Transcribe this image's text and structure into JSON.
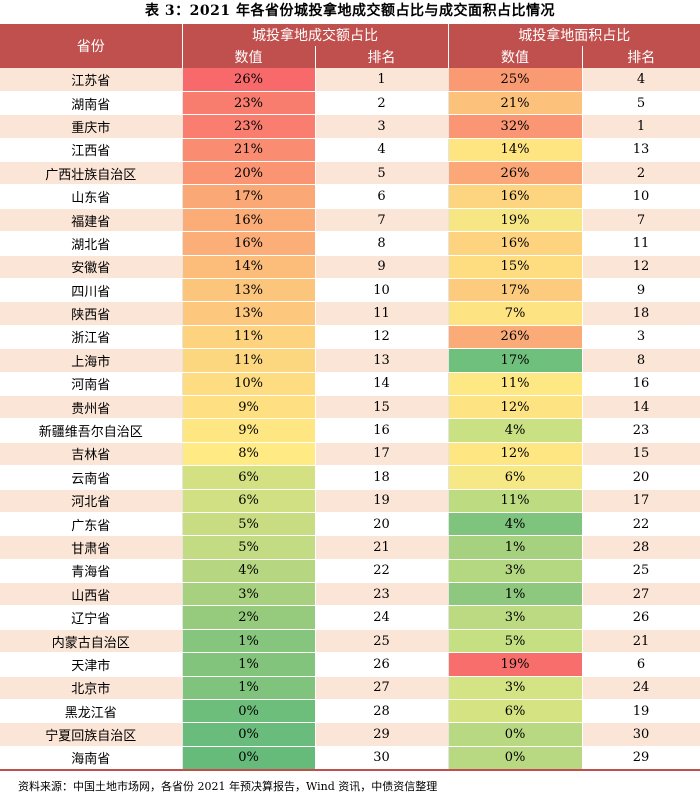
{
  "title": "表 3：2021 年各省份城投拿地成交额占比与成交面积占比情况",
  "header": {
    "province": "省份",
    "group_amount": "城投拿地成交额占比",
    "group_area": "城投拿地面积占比",
    "value": "数值",
    "rank": "排名"
  },
  "rows": [
    {
      "province": "江苏省",
      "amount": "26%",
      "amount_rank": "1",
      "area": "25%",
      "area_rank": "4",
      "amount_color": "#f8696b",
      "area_color": "#fa9a72"
    },
    {
      "province": "湖南省",
      "amount": "23%",
      "amount_rank": "2",
      "area": "21%",
      "area_rank": "5",
      "amount_color": "#f97d6e",
      "area_color": "#fcc17b"
    },
    {
      "province": "重庆市",
      "amount": "23%",
      "amount_rank": "3",
      "area": "32%",
      "area_rank": "1",
      "amount_color": "#f97e6f",
      "area_color": "#fa9674"
    },
    {
      "province": "江西省",
      "amount": "21%",
      "amount_rank": "4",
      "area": "14%",
      "area_rank": "13",
      "amount_color": "#fa8d71",
      "area_color": "#fee582"
    },
    {
      "province": "广西壮族自治区",
      "amount": "20%",
      "amount_rank": "5",
      "area": "26%",
      "area_rank": "2",
      "amount_color": "#fa9473",
      "area_color": "#fba777"
    },
    {
      "province": "山东省",
      "amount": "17%",
      "amount_rank": "6",
      "area": "16%",
      "area_rank": "10",
      "amount_color": "#fba877",
      "area_color": "#fdd47f"
    },
    {
      "province": "福建省",
      "amount": "16%",
      "amount_rank": "7",
      "area": "19%",
      "area_rank": "7",
      "amount_color": "#fbac77",
      "area_color": "#f6e784"
    },
    {
      "province": "湖北省",
      "amount": "16%",
      "amount_rank": "8",
      "area": "16%",
      "area_rank": "11",
      "amount_color": "#fbae78",
      "area_color": "#fdd37f"
    },
    {
      "province": "安徽省",
      "amount": "14%",
      "amount_rank": "9",
      "area": "15%",
      "area_rank": "12",
      "amount_color": "#fcbd7b",
      "area_color": "#fedd81"
    },
    {
      "province": "四川省",
      "amount": "13%",
      "amount_rank": "10",
      "area": "17%",
      "area_rank": "9",
      "amount_color": "#fcc57c",
      "area_color": "#fdcb7d"
    },
    {
      "province": "陕西省",
      "amount": "13%",
      "amount_rank": "11",
      "area": "7%",
      "area_rank": "18",
      "amount_color": "#fdc77d",
      "area_color": "#fee382"
    },
    {
      "province": "浙江省",
      "amount": "11%",
      "amount_rank": "12",
      "area": "26%",
      "area_rank": "3",
      "amount_color": "#fdd37f",
      "area_color": "#fbab78"
    },
    {
      "province": "上海市",
      "amount": "11%",
      "amount_rank": "13",
      "area": "17%",
      "area_rank": "8",
      "amount_color": "#fdd680",
      "area_color": "#6fc07c"
    },
    {
      "province": "河南省",
      "amount": "10%",
      "amount_rank": "14",
      "area": "11%",
      "area_rank": "16",
      "amount_color": "#fedc81",
      "area_color": "#fee883"
    },
    {
      "province": "贵州省",
      "amount": "9%",
      "amount_rank": "15",
      "area": "12%",
      "area_rank": "14",
      "amount_color": "#fee082",
      "area_color": "#fee382"
    },
    {
      "province": "新疆维吾尔自治区",
      "amount": "9%",
      "amount_rank": "16",
      "area": "4%",
      "area_rank": "23",
      "amount_color": "#fee683",
      "area_color": "#c9e183"
    },
    {
      "province": "吉林省",
      "amount": "8%",
      "amount_rank": "17",
      "area": "12%",
      "area_rank": "15",
      "amount_color": "#ffea84",
      "area_color": "#fee783"
    },
    {
      "province": "云南省",
      "amount": "6%",
      "amount_rank": "18",
      "area": "6%",
      "area_rank": "20",
      "amount_color": "#d3e183",
      "area_color": "#f6e884"
    },
    {
      "province": "河北省",
      "amount": "6%",
      "amount_rank": "19",
      "area": "11%",
      "area_rank": "17",
      "amount_color": "#d0e083",
      "area_color": "#bddc82"
    },
    {
      "province": "广东省",
      "amount": "5%",
      "amount_rank": "20",
      "area": "4%",
      "area_rank": "22",
      "amount_color": "#c8dd82",
      "area_color": "#7ec47d"
    },
    {
      "province": "甘肃省",
      "amount": "5%",
      "amount_rank": "21",
      "area": "1%",
      "area_rank": "28",
      "amount_color": "#c3db82",
      "area_color": "#a6d27f"
    },
    {
      "province": "青海省",
      "amount": "4%",
      "amount_rank": "22",
      "area": "3%",
      "area_rank": "25",
      "amount_color": "#b6d681",
      "area_color": "#b4d781"
    },
    {
      "province": "山西省",
      "amount": "3%",
      "amount_rank": "23",
      "area": "1%",
      "area_rank": "27",
      "amount_color": "#a8d17f",
      "area_color": "#8dc87e"
    },
    {
      "province": "辽宁省",
      "amount": "2%",
      "amount_rank": "24",
      "area": "3%",
      "area_rank": "26",
      "amount_color": "#96cb7e",
      "area_color": "#bbda82"
    },
    {
      "province": "内蒙古自治区",
      "amount": "1%",
      "amount_rank": "25",
      "area": "5%",
      "area_rank": "21",
      "amount_color": "#86c57d",
      "area_color": "#c5df83"
    },
    {
      "province": "天津市",
      "amount": "1%",
      "amount_rank": "26",
      "area": "19%",
      "area_rank": "6",
      "amount_color": "#83c47d",
      "area_color": "#f86e6c"
    },
    {
      "province": "北京市",
      "amount": "1%",
      "amount_rank": "27",
      "area": "3%",
      "area_rank": "24",
      "amount_color": "#7fc37d",
      "area_color": "#d4e383"
    },
    {
      "province": "黑龙江省",
      "amount": "0%",
      "amount_rank": "28",
      "area": "6%",
      "area_rank": "19",
      "amount_color": "#6ebe7b",
      "area_color": "#d6e383"
    },
    {
      "province": "宁夏回族自治区",
      "amount": "0%",
      "amount_rank": "29",
      "area": "0%",
      "area_rank": "30",
      "amount_color": "#69bc7b",
      "area_color": "#b8d982"
    },
    {
      "province": "海南省",
      "amount": "0%",
      "amount_rank": "30",
      "area": "0%",
      "area_rank": "29",
      "amount_color": "#66bb7a",
      "area_color": "#b8d982"
    }
  ],
  "source": "资料来源：中国土地市场网，各省份 2021 年预决算报告，Wind 资讯，中债资信整理",
  "colors": {
    "header_bg": "#c0504d",
    "stripe": "#fbe5d6"
  }
}
